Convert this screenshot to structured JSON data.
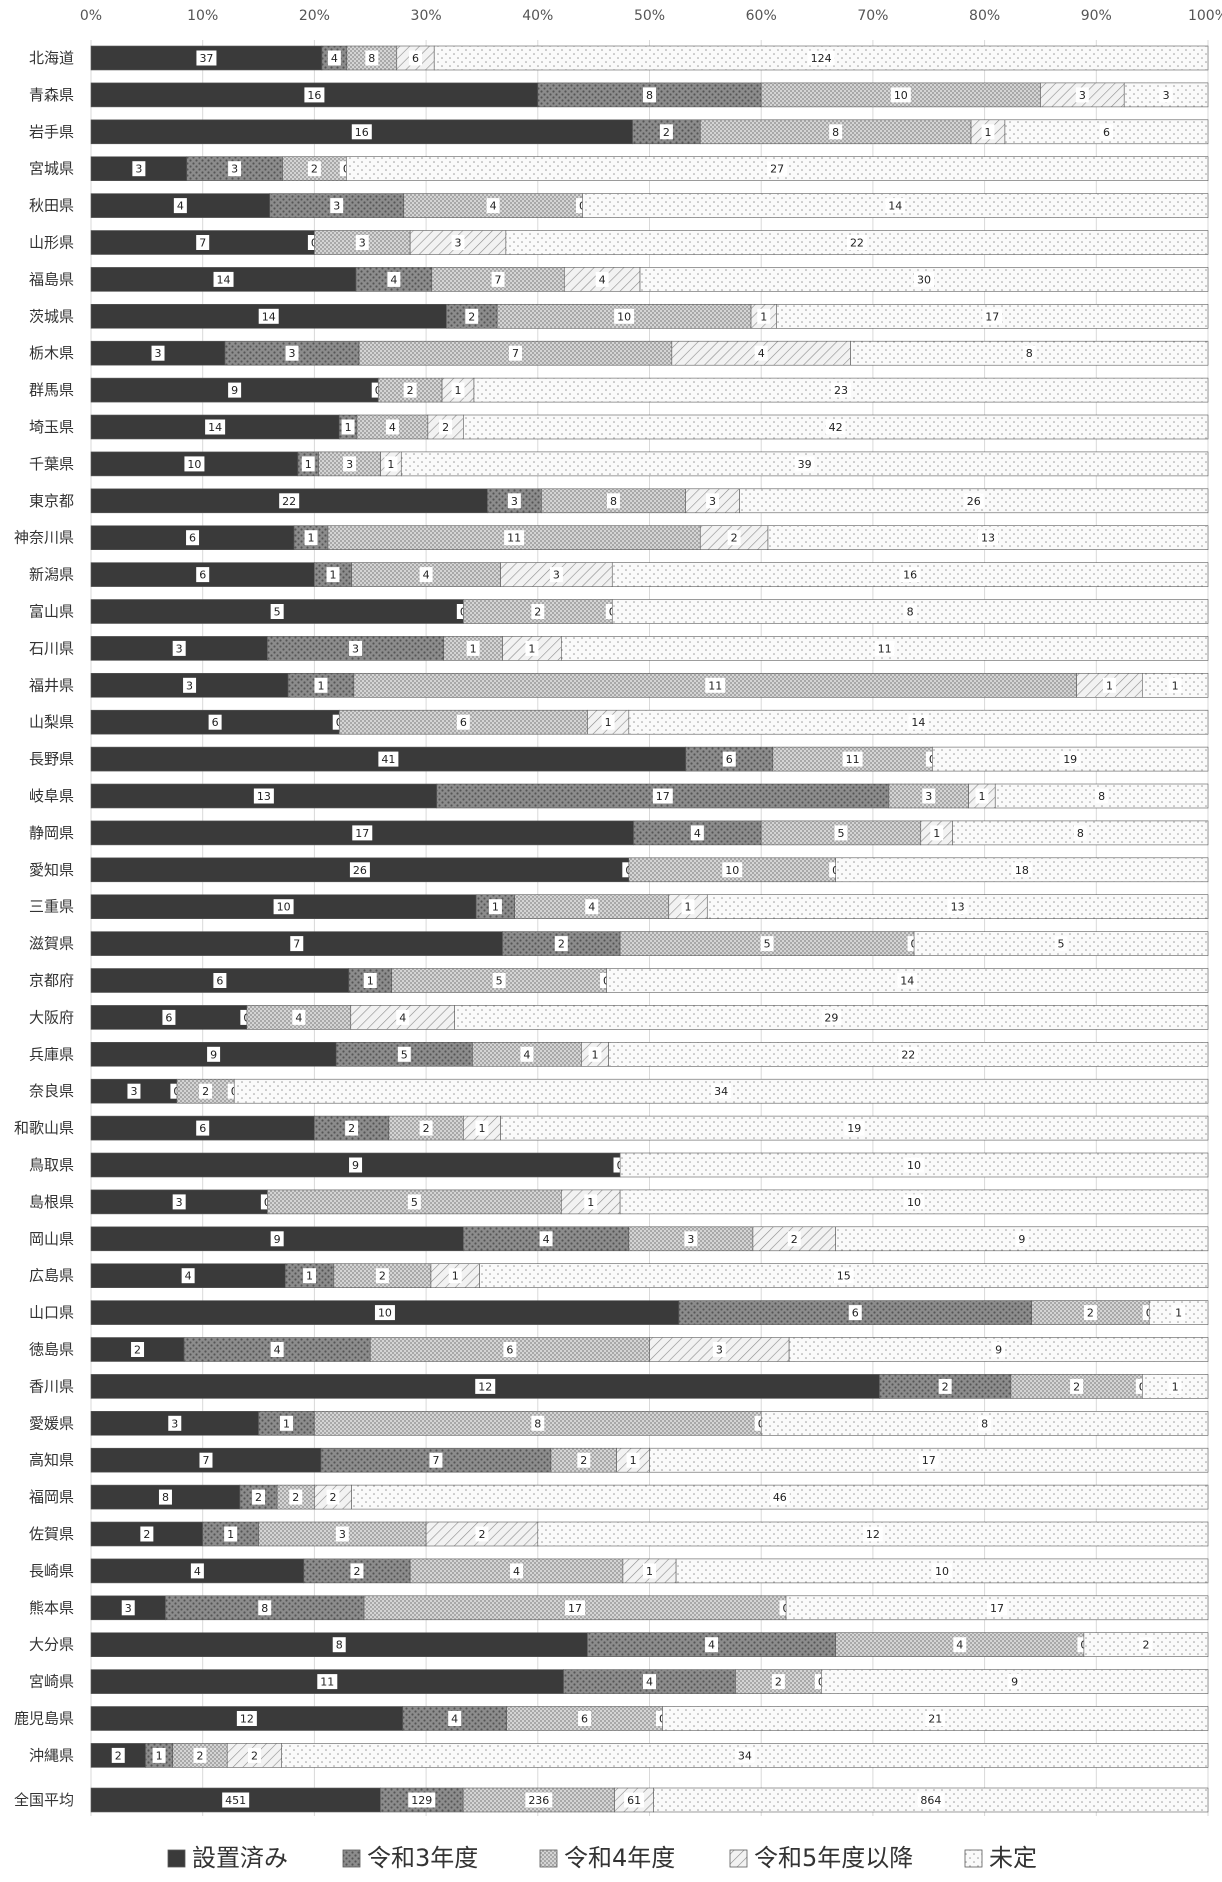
{
  "chart_data": {
    "type": "bar",
    "orientation": "horizontal",
    "stacking": "percent",
    "x_tick_labels": [
      "0%",
      "10%",
      "20%",
      "30%",
      "40%",
      "50%",
      "60%",
      "70%",
      "80%",
      "90%",
      "100%"
    ],
    "xlim": [
      0,
      100
    ],
    "grid": true,
    "legend_position": "bottom",
    "categories": [
      "北海道",
      "青森県",
      "岩手県",
      "宮城県",
      "秋田県",
      "山形県",
      "福島県",
      "茨城県",
      "栃木県",
      "群馬県",
      "埼玉県",
      "千葉県",
      "東京都",
      "神奈川県",
      "新潟県",
      "富山県",
      "石川県",
      "福井県",
      "山梨県",
      "長野県",
      "岐阜県",
      "静岡県",
      "愛知県",
      "三重県",
      "滋賀県",
      "京都府",
      "大阪府",
      "兵庫県",
      "奈良県",
      "和歌山県",
      "鳥取県",
      "島根県",
      "岡山県",
      "広島県",
      "山口県",
      "徳島県",
      "香川県",
      "愛媛県",
      "高知県",
      "福岡県",
      "佐賀県",
      "長崎県",
      "熊本県",
      "大分県",
      "宮崎県",
      "鹿児島県",
      "沖縄県",
      "全国平均"
    ],
    "series": [
      {
        "name": "設置済み",
        "values": [
          37,
          16,
          16,
          3,
          4,
          7,
          14,
          14,
          3,
          9,
          14,
          10,
          22,
          6,
          6,
          5,
          3,
          3,
          6,
          41,
          13,
          17,
          26,
          10,
          7,
          6,
          6,
          9,
          3,
          6,
          9,
          3,
          9,
          4,
          10,
          2,
          12,
          3,
          7,
          8,
          2,
          4,
          3,
          8,
          11,
          12,
          2,
          451
        ]
      },
      {
        "name": "令和3年度",
        "values": [
          4,
          8,
          2,
          3,
          3,
          0,
          4,
          2,
          3,
          0,
          1,
          1,
          3,
          1,
          1,
          0,
          3,
          1,
          0,
          6,
          17,
          4,
          0,
          1,
          2,
          1,
          0,
          5,
          0,
          2,
          0,
          0,
          4,
          1,
          6,
          4,
          2,
          1,
          7,
          2,
          1,
          2,
          8,
          4,
          4,
          4,
          1,
          129
        ]
      },
      {
        "name": "令和4年度",
        "values": [
          8,
          10,
          8,
          2,
          4,
          3,
          7,
          10,
          7,
          2,
          4,
          3,
          8,
          11,
          4,
          2,
          1,
          11,
          6,
          11,
          3,
          5,
          10,
          4,
          5,
          5,
          4,
          4,
          2,
          2,
          0,
          5,
          3,
          2,
          2,
          6,
          2,
          8,
          2,
          2,
          3,
          4,
          17,
          4,
          2,
          6,
          2,
          236
        ]
      },
      {
        "name": "令和5年度以降",
        "values": [
          6,
          3,
          1,
          0,
          0,
          3,
          4,
          1,
          4,
          1,
          2,
          1,
          3,
          2,
          3,
          0,
          1,
          1,
          1,
          0,
          1,
          1,
          0,
          1,
          0,
          0,
          4,
          1,
          0,
          1,
          0,
          1,
          2,
          1,
          0,
          3,
          0,
          0,
          1,
          2,
          2,
          1,
          0,
          0,
          0,
          0,
          2,
          61
        ]
      },
      {
        "name": "未定",
        "values": [
          124,
          3,
          6,
          27,
          14,
          22,
          30,
          17,
          8,
          23,
          42,
          39,
          26,
          13,
          16,
          8,
          11,
          1,
          14,
          19,
          8,
          8,
          18,
          13,
          5,
          14,
          29,
          22,
          34,
          19,
          10,
          10,
          9,
          15,
          1,
          9,
          1,
          8,
          17,
          46,
          12,
          10,
          17,
          2,
          9,
          21,
          34,
          864
        ]
      }
    ],
    "colors": [
      "#3a3a3a",
      "#8c8c8c",
      "#c8c8c8",
      "#e4e4e4",
      "#f4f4f4"
    ]
  }
}
